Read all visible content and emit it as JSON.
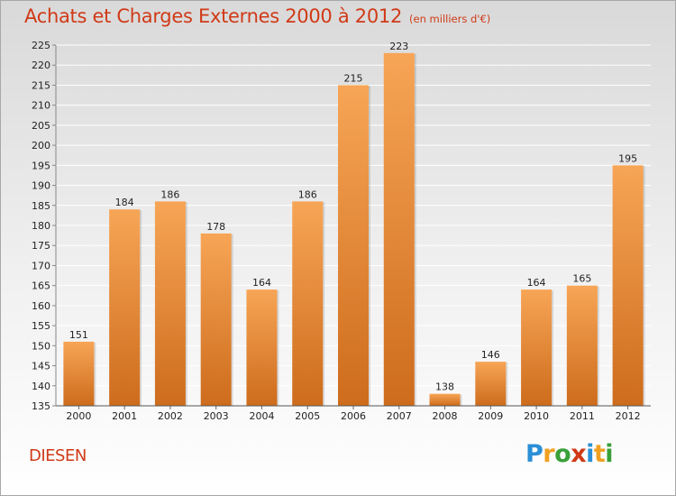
{
  "header": {
    "title": "Achats et Charges Externes 2000 à 2012",
    "subtitle": "(en milliers d'€)"
  },
  "footer": {
    "commune": "DIESEN",
    "logo": [
      "P",
      "r",
      "o",
      "x",
      "i",
      "t",
      "i"
    ],
    "logo_colors": [
      "#2a8fd6",
      "#f0a020",
      "#3aa03a",
      "#d03a17",
      "#2a8fd6",
      "#f0a020",
      "#3aa03a"
    ]
  },
  "colors": {
    "bar_light": "#f7a556",
    "bar_dark": "#cd6c1c",
    "grid": "#ffffff"
  },
  "chart_data": {
    "type": "bar",
    "categories": [
      "2000",
      "2001",
      "2002",
      "2003",
      "2004",
      "2005",
      "2006",
      "2007",
      "2008",
      "2009",
      "2010",
      "2011",
      "2012"
    ],
    "values": [
      151,
      184,
      186,
      178,
      164,
      186,
      215,
      223,
      138,
      146,
      164,
      165,
      195
    ],
    "title": "Achats et Charges Externes 2000 à 2012",
    "xlabel": "",
    "ylabel": "",
    "ylim": [
      135,
      225
    ],
    "yticks": [
      135,
      140,
      145,
      150,
      155,
      160,
      165,
      170,
      175,
      180,
      185,
      190,
      195,
      200,
      205,
      210,
      215,
      220,
      225
    ],
    "grid": true,
    "data_labels": true
  }
}
